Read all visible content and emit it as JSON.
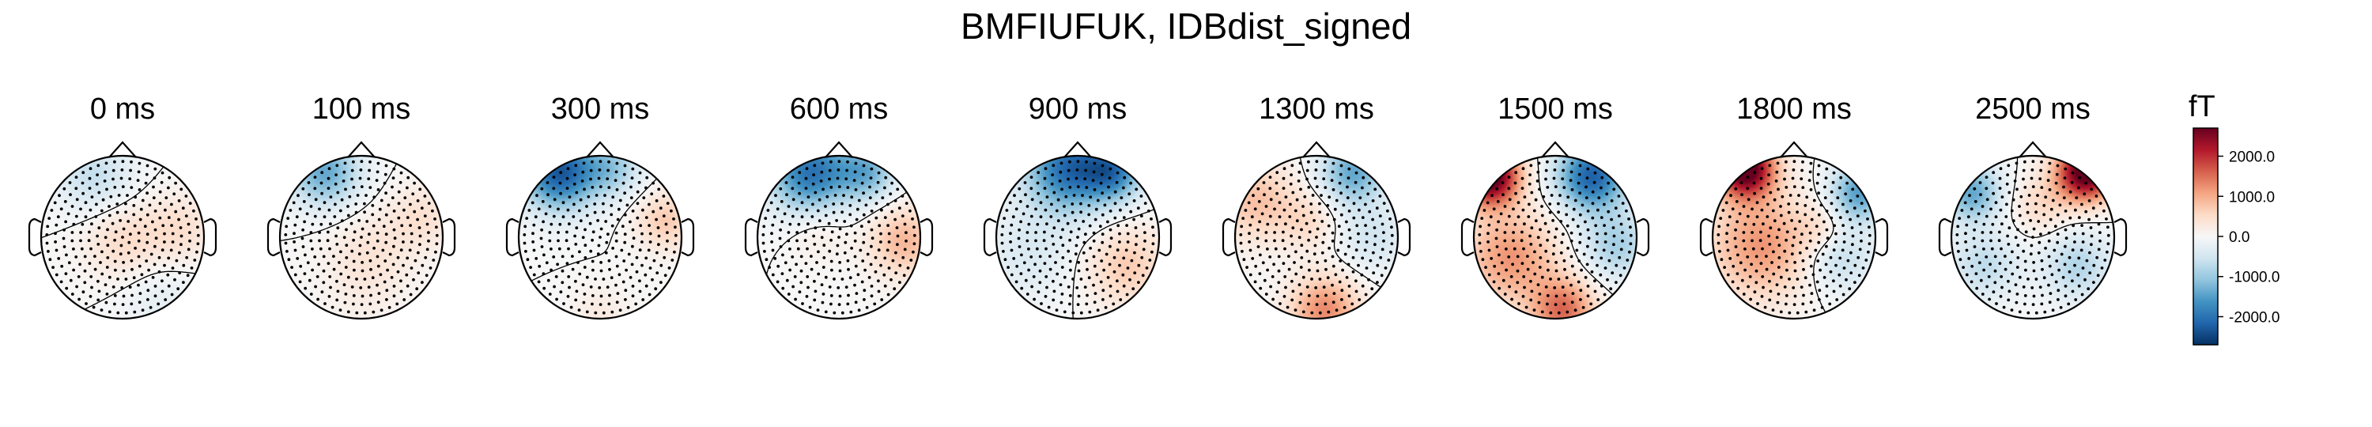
{
  "chart_data": {
    "type": "heatmap",
    "subtype": "topographic-map-series",
    "title": "BMFIUFUK, IDBdist_signed",
    "panels": [
      {
        "label": "0 ms",
        "blobs": [
          {
            "x": 0.0,
            "y": -0.05,
            "amp": 500,
            "s": 0.33
          },
          {
            "x": -0.35,
            "y": 0.75,
            "amp": -650,
            "s": 0.32
          },
          {
            "x": 0.7,
            "y": 0.1,
            "amp": 450,
            "s": 0.3
          },
          {
            "x": 0.45,
            "y": -0.75,
            "amp": -250,
            "s": 0.35
          }
        ]
      },
      {
        "label": "100 ms",
        "blobs": [
          {
            "x": -0.45,
            "y": 0.8,
            "amp": -1400,
            "s": 0.3
          },
          {
            "x": 0.1,
            "y": -0.2,
            "amp": 350,
            "s": 0.38
          },
          {
            "x": 0.75,
            "y": 0.25,
            "amp": 400,
            "s": 0.28
          },
          {
            "x": 0.0,
            "y": -0.8,
            "amp": 100,
            "s": 0.35
          }
        ]
      },
      {
        "label": "300 ms",
        "blobs": [
          {
            "x": -0.5,
            "y": 0.8,
            "amp": -2300,
            "s": 0.32
          },
          {
            "x": 0.15,
            "y": 0.85,
            "amp": -900,
            "s": 0.25
          },
          {
            "x": 0.8,
            "y": 0.2,
            "amp": 700,
            "s": 0.25
          },
          {
            "x": 0.0,
            "y": -0.95,
            "amp": 250,
            "s": 0.25
          }
        ]
      },
      {
        "label": "600 ms",
        "blobs": [
          {
            "x": -0.35,
            "y": 0.8,
            "amp": -2000,
            "s": 0.35
          },
          {
            "x": 0.35,
            "y": 0.8,
            "amp": -1200,
            "s": 0.25
          },
          {
            "x": 0.8,
            "y": -0.05,
            "amp": 900,
            "s": 0.3
          },
          {
            "x": -0.25,
            "y": 0.1,
            "amp": 300,
            "s": 0.25
          }
        ]
      },
      {
        "label": "900 ms",
        "blobs": [
          {
            "x": -0.1,
            "y": 0.85,
            "amp": -2100,
            "s": 0.38
          },
          {
            "x": 0.45,
            "y": 0.8,
            "amp": -1500,
            "s": 0.25
          },
          {
            "x": 0.6,
            "y": -0.35,
            "amp": 700,
            "s": 0.35
          },
          {
            "x": -0.6,
            "y": -0.2,
            "amp": -400,
            "s": 0.4
          }
        ]
      },
      {
        "label": "1300 ms",
        "blobs": [
          {
            "x": 0.45,
            "y": 0.8,
            "amp": -1400,
            "s": 0.28
          },
          {
            "x": -0.75,
            "y": 0.45,
            "amp": 800,
            "s": 0.35
          },
          {
            "x": 0.1,
            "y": -0.9,
            "amp": 1300,
            "s": 0.3
          },
          {
            "x": -0.1,
            "y": 0.2,
            "amp": 450,
            "s": 0.25
          },
          {
            "x": 0.7,
            "y": 0.0,
            "amp": -500,
            "s": 0.3
          }
        ]
      },
      {
        "label": "1500 ms",
        "blobs": [
          {
            "x": -0.8,
            "y": 0.75,
            "amp": 3000,
            "s": 0.25
          },
          {
            "x": 0.45,
            "y": 0.75,
            "amp": -2200,
            "s": 0.3
          },
          {
            "x": -0.55,
            "y": -0.25,
            "amp": 1200,
            "s": 0.4
          },
          {
            "x": 0.1,
            "y": -0.9,
            "amp": 1500,
            "s": 0.28
          },
          {
            "x": 0.75,
            "y": -0.1,
            "amp": -900,
            "s": 0.3
          }
        ]
      },
      {
        "label": "1800 ms",
        "blobs": [
          {
            "x": -0.6,
            "y": 0.85,
            "amp": 3000,
            "s": 0.25
          },
          {
            "x": 0.8,
            "y": 0.55,
            "amp": -1500,
            "s": 0.25
          },
          {
            "x": -0.4,
            "y": -0.1,
            "amp": 1200,
            "s": 0.45
          },
          {
            "x": 0.55,
            "y": -0.25,
            "amp": -700,
            "s": 0.3
          },
          {
            "x": 0.35,
            "y": 0.1,
            "amp": 400,
            "s": 0.2
          }
        ]
      },
      {
        "label": "2500 ms",
        "blobs": [
          {
            "x": 0.65,
            "y": 0.8,
            "amp": 3000,
            "s": 0.25
          },
          {
            "x": -0.75,
            "y": 0.55,
            "amp": -1400,
            "s": 0.25
          },
          {
            "x": -0.6,
            "y": -0.35,
            "amp": -700,
            "s": 0.3
          },
          {
            "x": 0.55,
            "y": -0.35,
            "amp": -800,
            "s": 0.3
          },
          {
            "x": 0.1,
            "y": 0.4,
            "amp": 500,
            "s": 0.25
          }
        ]
      }
    ],
    "colorbar": {
      "label": "fT",
      "range": [
        -2700,
        2700
      ],
      "ticks": [
        {
          "value": 2000,
          "label": "2000.0"
        },
        {
          "value": 1000,
          "label": "1000.0"
        },
        {
          "value": 0,
          "label": "0.0"
        },
        {
          "value": -1000,
          "label": "-1000.0"
        },
        {
          "value": -2000,
          "label": "-2000.0"
        }
      ],
      "colormap": "RdBu_r",
      "colormap_stops": [
        "#053061",
        "#2166ac",
        "#4393c3",
        "#92c5de",
        "#d1e5f0",
        "#f7f7f7",
        "#fddbc7",
        "#f4a582",
        "#d6604d",
        "#b2182b",
        "#67001f"
      ]
    },
    "sensor_markers": "dots",
    "contour_level": 0
  }
}
